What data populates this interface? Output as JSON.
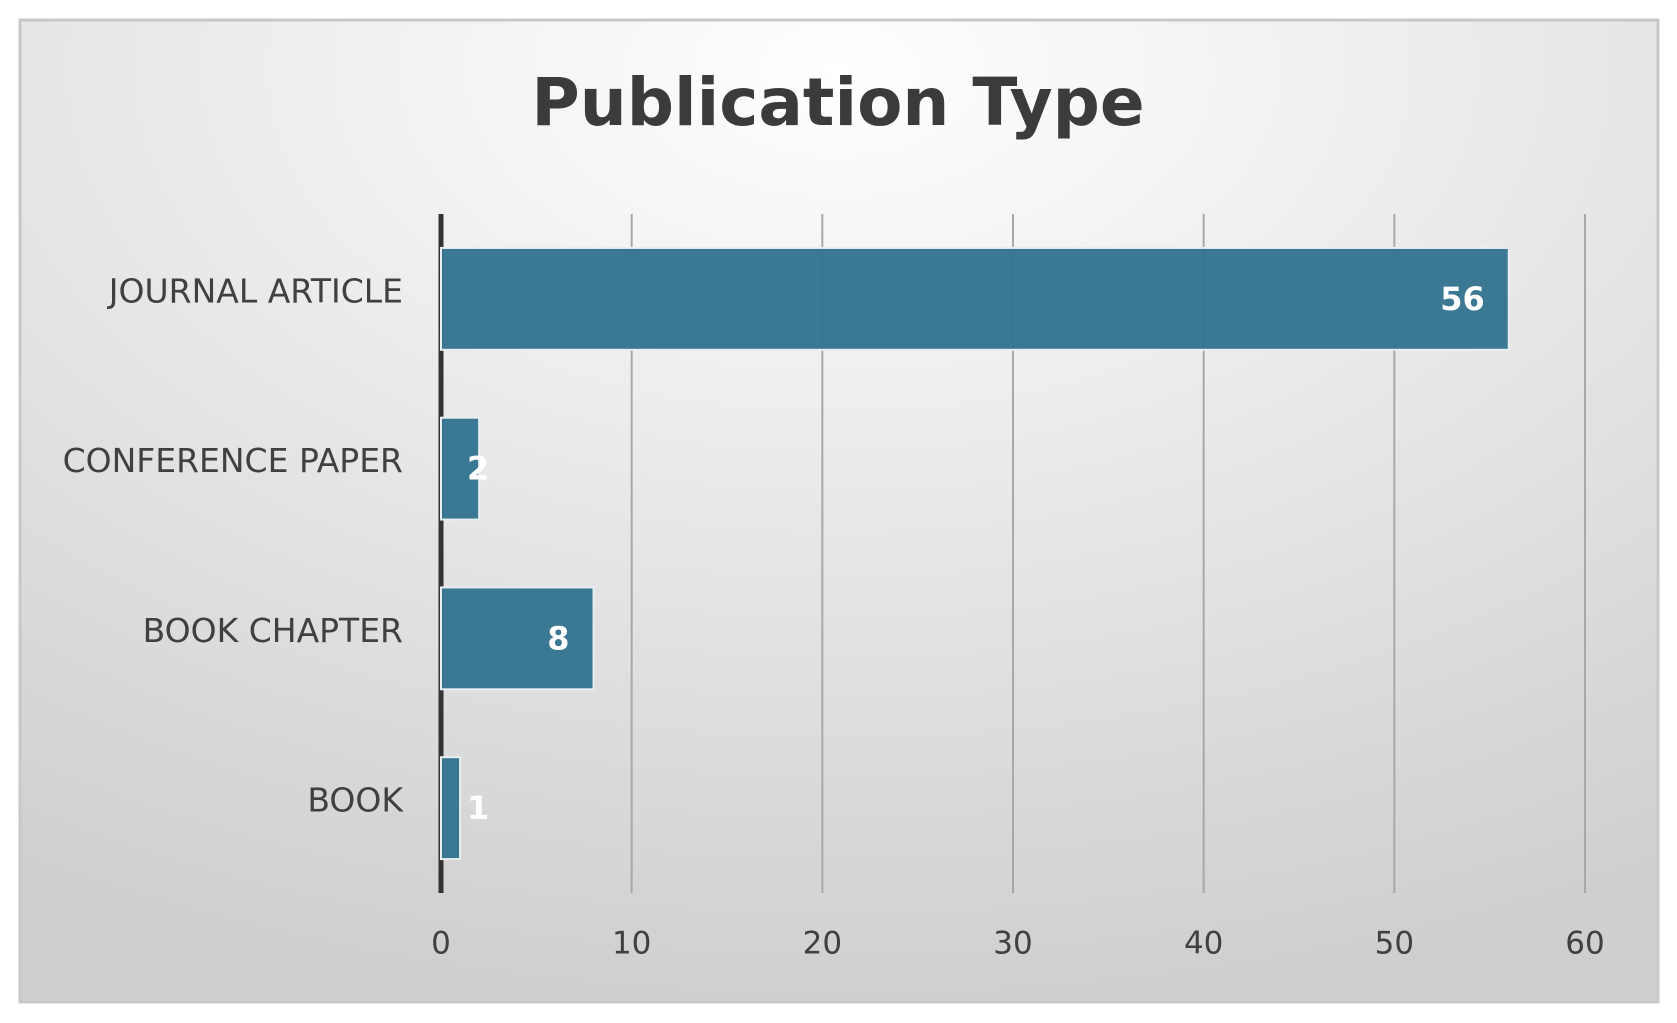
{
  "chart_data": {
    "type": "hbar",
    "title": "Publication Type",
    "categories": [
      "JOURNAL ARTICLE",
      "CONFERENCE PAPER",
      "BOOK CHAPTER",
      "BOOK"
    ],
    "values": [
      56,
      2,
      8,
      1
    ],
    "color": "#35748f",
    "xlim": [
      0,
      60
    ],
    "xticks": [
      0,
      10,
      20,
      30,
      40,
      50,
      60
    ],
    "grid": true
  }
}
